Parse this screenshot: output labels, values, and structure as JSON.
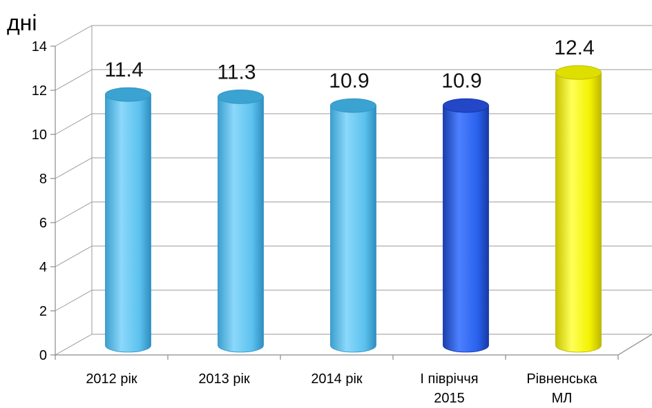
{
  "chart_data": {
    "type": "bar",
    "ylabel": "дні",
    "ylim": [
      0,
      14
    ],
    "yticks": [
      0,
      2,
      4,
      6,
      8,
      10,
      12,
      14
    ],
    "yticks_labels": [
      "0",
      "2",
      "4",
      "6",
      "8",
      "10",
      "12",
      "14"
    ],
    "grid": true,
    "categories": [
      [
        "2012 рік"
      ],
      [
        "2013 рік"
      ],
      [
        "2014 рік"
      ],
      [
        "І півріччя",
        "2015"
      ],
      [
        "Рівненська",
        "МЛ"
      ]
    ],
    "values": [
      11.4,
      11.3,
      10.9,
      10.9,
      12.4
    ],
    "value_labels": [
      "11.4",
      "11.3",
      "10.9",
      "10.9",
      "12.4"
    ],
    "bar_colors": [
      "#5bc3ee",
      "#5bc3ee",
      "#5bc3ee",
      "#1f57e0",
      "#f2f200"
    ]
  }
}
